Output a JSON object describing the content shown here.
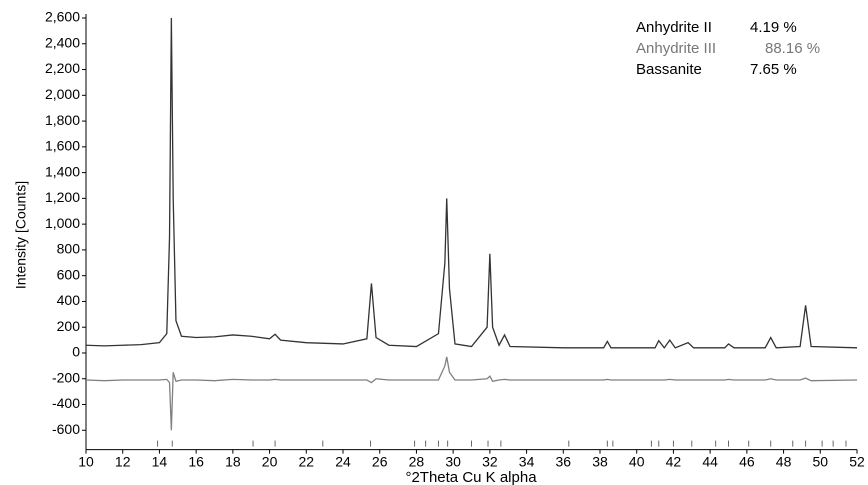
{
  "chart_data": {
    "type": "line",
    "x_label": "°2Theta Cu K alpha",
    "y_label": "Intensity [Counts]",
    "x": [
      10,
      11,
      12,
      13,
      14,
      14.4,
      14.55,
      14.65,
      14.75,
      14.9,
      15.2,
      16,
      17,
      18,
      19,
      20,
      20.3,
      20.6,
      22,
      24,
      25.3,
      25.55,
      25.8,
      26.5,
      28,
      29.2,
      29.55,
      29.65,
      29.8,
      30.1,
      31,
      31.85,
      32.0,
      32.15,
      32.5,
      32.8,
      33.1,
      36,
      38.2,
      38.4,
      38.6,
      41,
      41.2,
      41.5,
      41.8,
      42.1,
      42.8,
      43.1,
      44.8,
      45.0,
      45.3,
      47.0,
      47.3,
      47.6,
      48.9,
      49.2,
      49.5,
      52
    ],
    "series": [
      {
        "color": "#333333",
        "values": [
          60,
          55,
          60,
          65,
          80,
          150,
          900,
          2600,
          1200,
          250,
          130,
          120,
          125,
          140,
          130,
          110,
          145,
          100,
          80,
          70,
          110,
          540,
          120,
          60,
          50,
          150,
          700,
          1200,
          500,
          70,
          50,
          200,
          770,
          200,
          60,
          140,
          50,
          40,
          40,
          90,
          40,
          40,
          95,
          40,
          100,
          40,
          80,
          40,
          40,
          70,
          40,
          40,
          120,
          40,
          50,
          370,
          50,
          40
        ]
      },
      {
        "color": "#808080",
        "values": [
          -210,
          -215,
          -210,
          -210,
          -210,
          -205,
          -230,
          -600,
          -150,
          -220,
          -210,
          -210,
          -215,
          -205,
          -210,
          -210,
          -205,
          -210,
          -210,
          -210,
          -210,
          -230,
          -200,
          -210,
          -210,
          -210,
          -100,
          -30,
          -150,
          -210,
          -210,
          -200,
          -180,
          -220,
          -210,
          -205,
          -210,
          -210,
          -210,
          -205,
          -210,
          -210,
          -210,
          -210,
          -205,
          -210,
          -210,
          -210,
          -210,
          -205,
          -210,
          -210,
          -200,
          -210,
          -210,
          -195,
          -215,
          -210
        ]
      }
    ],
    "reflections": [
      13.9,
      14.7,
      19.1,
      20.3,
      22.9,
      25.5,
      27.9,
      28.5,
      29.2,
      29.7,
      31.0,
      31.9,
      32.6,
      36.3,
      38.4,
      38.7,
      40.8,
      41.2,
      42.0,
      43.0,
      44.3,
      45.0,
      46.1,
      47.3,
      48.5,
      49.2,
      50.1,
      50.7,
      51.4
    ],
    "phases": {
      "names": [
        "Anhydrite II",
        "Anhydrite III",
        "Bassanite"
      ],
      "colors": [
        "#000000",
        "#777777",
        "#000000"
      ],
      "values": [
        4.19,
        88.16,
        7.65
      ],
      "value_labels": [
        "4.19 %",
        "88.16 %",
        "7.65 %"
      ]
    },
    "xlim": [
      10,
      52
    ],
    "xticks": [
      10,
      12,
      14,
      16,
      18,
      20,
      22,
      24,
      26,
      28,
      30,
      32,
      34,
      36,
      38,
      40,
      42,
      44,
      46,
      48,
      50,
      52
    ],
    "ylim": [
      -750,
      2600
    ],
    "yticks": [
      {
        "value": -600,
        "label": "-600"
      },
      {
        "value": -400,
        "label": "-400"
      },
      {
        "value": -200,
        "label": "-200"
      },
      0,
      200,
      400,
      600,
      800,
      {
        "value": 1000,
        "label": "1,000"
      },
      {
        "value": 1200,
        "label": "1,200"
      },
      {
        "value": 1400,
        "label": "1,400"
      },
      {
        "value": 1600,
        "label": "1,600"
      },
      {
        "value": 1800,
        "label": "1,800"
      },
      {
        "value": 2000,
        "label": "2,000"
      },
      {
        "value": 2200,
        "label": "2,200"
      },
      {
        "value": 2400,
        "label": "2,400"
      },
      {
        "value": 2600,
        "label": "2,600"
      }
    ]
  }
}
